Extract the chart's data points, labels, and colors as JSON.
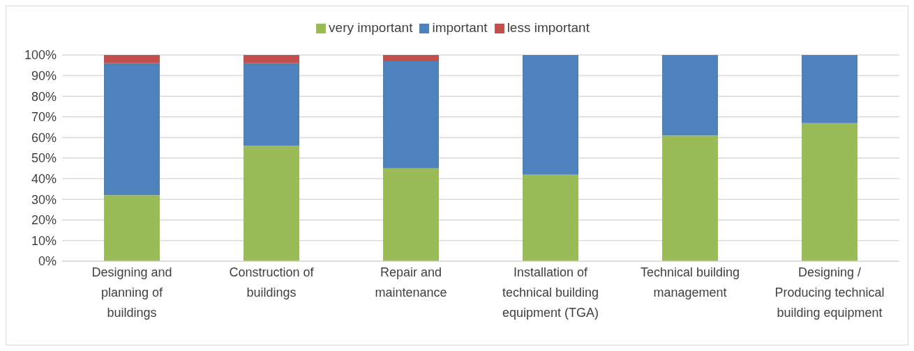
{
  "chart_data": {
    "type": "bar",
    "stacked": true,
    "categories": [
      "Designing and planning of buildings",
      "Construction of buildings",
      "Repair and maintenance",
      "Installation of technical building equipment (TGA)",
      "Technical building management",
      "Designing / Producing technical building equipment"
    ],
    "series": [
      {
        "name": "very important",
        "color": "#9bbb59",
        "values": [
          32,
          56,
          45,
          42,
          61,
          67
        ]
      },
      {
        "name": "important",
        "color": "#4f81bd",
        "values": [
          64,
          40,
          52,
          58,
          39,
          33
        ]
      },
      {
        "name": "less important",
        "color": "#c0504d",
        "values": [
          4,
          4,
          3,
          0,
          0,
          0
        ]
      }
    ],
    "ylim": [
      0,
      100
    ],
    "yticks": [
      {
        "value": 0,
        "label": "0%"
      },
      {
        "value": 10,
        "label": "10%"
      },
      {
        "value": 20,
        "label": "20%"
      },
      {
        "value": 30,
        "label": "30%"
      },
      {
        "value": 40,
        "label": "40%"
      },
      {
        "value": 50,
        "label": "50%"
      },
      {
        "value": 60,
        "label": "60%"
      },
      {
        "value": 70,
        "label": "70%"
      },
      {
        "value": 80,
        "label": "80%"
      },
      {
        "value": 90,
        "label": "90%"
      },
      {
        "value": 100,
        "label": "100%"
      }
    ],
    "grid": "y",
    "legend": "top"
  }
}
